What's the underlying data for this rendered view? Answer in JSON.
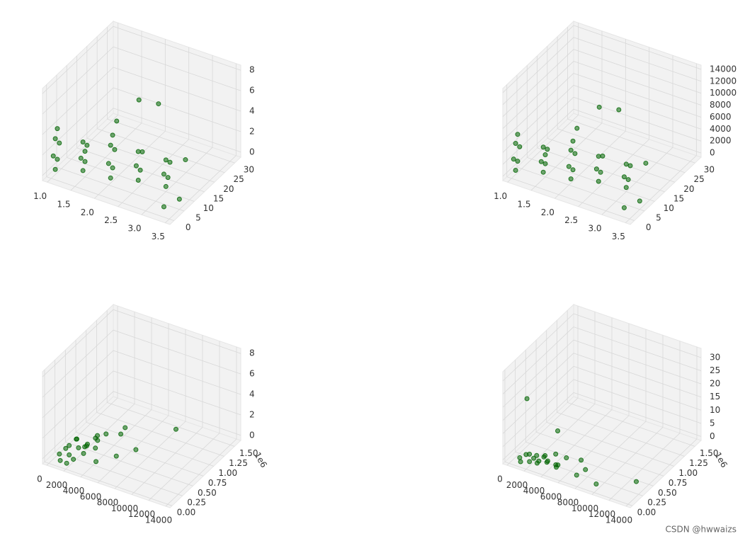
{
  "chart_data": [
    {
      "type": "scatter3d",
      "grid": true,
      "color": "#006400",
      "xlim": [
        0.9,
        3.6
      ],
      "ylim": [
        -2,
        33
      ],
      "zlim": [
        -0.5,
        8.5
      ],
      "xticks": [
        {
          "value": 1,
          "label": "1.0"
        },
        1.5,
        {
          "value": 2,
          "label": "2.0"
        },
        2.5,
        {
          "value": 3,
          "label": "3.0"
        },
        3.5
      ],
      "yticks": [
        0,
        5,
        10,
        15,
        20,
        25,
        30
      ],
      "zticks": [
        0,
        2,
        4,
        6,
        8
      ],
      "series": [
        {
          "x": [
            1,
            1,
            1,
            1,
            1,
            1,
            1.5,
            1.5,
            1.5,
            1.5,
            1.5,
            1.5,
            2,
            2,
            2,
            2,
            2,
            2,
            2,
            2.5,
            2.5,
            2.5,
            2.5,
            2.5,
            3,
            3,
            3,
            3,
            3,
            2,
            2.2,
            3.2,
            3.5,
            3.3
          ],
          "y": [
            2,
            3,
            1,
            4,
            2,
            3,
            4,
            5,
            3,
            6,
            4,
            5,
            6,
            7,
            5,
            8,
            6,
            7,
            9,
            8,
            9,
            7,
            10,
            8,
            10,
            11,
            9,
            12,
            10,
            20,
            25,
            15,
            5,
            2
          ],
          "z": [
            0,
            0.8,
            1.5,
            2.2,
            3,
            3.8,
            0.3,
            1,
            1.7,
            2.4,
            3.1,
            2,
            0,
            0.8,
            1.6,
            2.4,
            3.2,
            4,
            5,
            0.2,
            1,
            1.8,
            2.6,
            3,
            0,
            0.7,
            1.4,
            2,
            2.6,
            5,
            4,
            2,
            0.5,
            0
          ]
        }
      ]
    },
    {
      "type": "scatter3d",
      "grid": true,
      "color": "#006400",
      "xlim": [
        0.9,
        3.6
      ],
      "ylim": [
        -2,
        33
      ],
      "zlim": [
        -700,
        14700
      ],
      "xticks": [
        {
          "value": 1,
          "label": "1.0"
        },
        1.5,
        {
          "value": 2,
          "label": "2.0"
        },
        2.5,
        {
          "value": 3,
          "label": "3.0"
        },
        3.5
      ],
      "yticks": [
        0,
        5,
        10,
        15,
        20,
        25,
        30
      ],
      "zticks": [
        0,
        2000,
        4000,
        6000,
        8000,
        10000,
        12000,
        14000
      ],
      "series": [
        {
          "x": [
            1,
            1,
            1,
            1,
            1,
            1,
            1.5,
            1.5,
            1.5,
            1.5,
            1.5,
            1.5,
            2,
            2,
            2,
            2,
            2,
            2,
            2,
            2.5,
            2.5,
            2.5,
            2.5,
            2.5,
            3,
            3,
            3,
            3,
            3,
            2,
            2.2,
            3.2,
            3.5,
            3.3
          ],
          "y": [
            2,
            3,
            1,
            4,
            2,
            3,
            4,
            5,
            3,
            6,
            4,
            5,
            6,
            7,
            5,
            8,
            6,
            7,
            9,
            8,
            9,
            7,
            10,
            8,
            10,
            11,
            9,
            12,
            10,
            20,
            25,
            15,
            5,
            2
          ],
          "z": [
            0,
            1200,
            2200,
            3300,
            4500,
            5700,
            400,
            1500,
            2500,
            3600,
            4600,
            3000,
            0,
            1200,
            2400,
            3600,
            4800,
            6000,
            7500,
            300,
            1500,
            2700,
            3900,
            4500,
            0,
            1000,
            2100,
            3000,
            3900,
            7500,
            6000,
            3000,
            700,
            0
          ]
        }
      ]
    },
    {
      "type": "scatter3d",
      "grid": true,
      "color": "#006400",
      "xlim": [
        -500,
        14500
      ],
      "ylim": [
        -50000,
        1650000
      ],
      "zlim": [
        -0.5,
        8.5
      ],
      "xticks": [
        0,
        2000,
        4000,
        6000,
        8000,
        10000,
        12000,
        14000
      ],
      "yticks": [
        {
          "value": 0,
          "label": "0.00"
        },
        {
          "value": 250000,
          "label": "0.25"
        },
        {
          "value": 500000,
          "label": "0.50"
        },
        {
          "value": 750000,
          "label": "0.75"
        },
        {
          "value": 1000000,
          "label": "1.00"
        },
        {
          "value": 1250000,
          "label": "1.25"
        },
        {
          "value": 1500000,
          "label": "1.50"
        }
      ],
      "y_offset_label": "1e6",
      "zticks": [
        0,
        2,
        4,
        6,
        8
      ],
      "series": [
        {
          "x": [
            1000,
            1500,
            2000,
            2500,
            3000,
            3500,
            4000,
            4500,
            5000,
            1200,
            2200,
            3200,
            4200,
            5200,
            6000,
            7000,
            8000,
            3000,
            2000,
            4000,
            10000,
            13000,
            2500,
            5500,
            7500
          ],
          "y": [
            50000,
            100000,
            80000,
            150000,
            60000,
            120000,
            90000,
            200000,
            100000,
            30000,
            40000,
            60000,
            70000,
            110000,
            150000,
            300000,
            200000,
            250000,
            20000,
            350000,
            50000,
            400000,
            80000,
            10000,
            90000
          ],
          "z": [
            0.5,
            1,
            1.5,
            2,
            2.5,
            1,
            2,
            1.5,
            3,
            0,
            0.8,
            1.7,
            2.3,
            2.8,
            3.5,
            3.2,
            4.5,
            1,
            0,
            2,
            3.5,
            5,
            0.3,
            1.2,
            2
          ]
        }
      ]
    },
    {
      "type": "scatter3d",
      "grid": true,
      "color": "#006400",
      "xlim": [
        -500,
        14500
      ],
      "ylim": [
        -50000,
        1650000
      ],
      "zlim": [
        -1.5,
        33.5
      ],
      "xticks": [
        0,
        2000,
        4000,
        6000,
        8000,
        10000,
        12000,
        14000
      ],
      "yticks": [
        {
          "value": 0,
          "label": "0.00"
        },
        {
          "value": 250000,
          "label": "0.25"
        },
        {
          "value": 500000,
          "label": "0.50"
        },
        {
          "value": 750000,
          "label": "0.75"
        },
        {
          "value": 1000000,
          "label": "1.00"
        },
        {
          "value": 1250000,
          "label": "1.25"
        },
        {
          "value": 1500000,
          "label": "1.50"
        }
      ],
      "y_offset_label": "1e6",
      "zticks": [
        0,
        5,
        10,
        15,
        20,
        25,
        30
      ],
      "series": [
        {
          "x": [
            1000,
            1500,
            2000,
            2500,
            3000,
            3500,
            4000,
            4500,
            5000,
            1200,
            2200,
            3200,
            4200,
            5200,
            6000,
            7000,
            8000,
            3000,
            2000,
            4000,
            10000,
            13000,
            2500,
            5500,
            7500
          ],
          "y": [
            50000,
            100000,
            80000,
            150000,
            60000,
            120000,
            90000,
            200000,
            100000,
            30000,
            40000,
            60000,
            70000,
            110000,
            150000,
            300000,
            200000,
            250000,
            20000,
            350000,
            50000,
            400000,
            80000,
            10000,
            90000
          ],
          "z": [
            1,
            2,
            3,
            2,
            1,
            3,
            2,
            4,
            2,
            0,
            1,
            2,
            3,
            2,
            5,
            3,
            2,
            1,
            25,
            10,
            1,
            0,
            2,
            3,
            1
          ]
        }
      ]
    }
  ],
  "watermark": "CSDN @hwwaizs"
}
